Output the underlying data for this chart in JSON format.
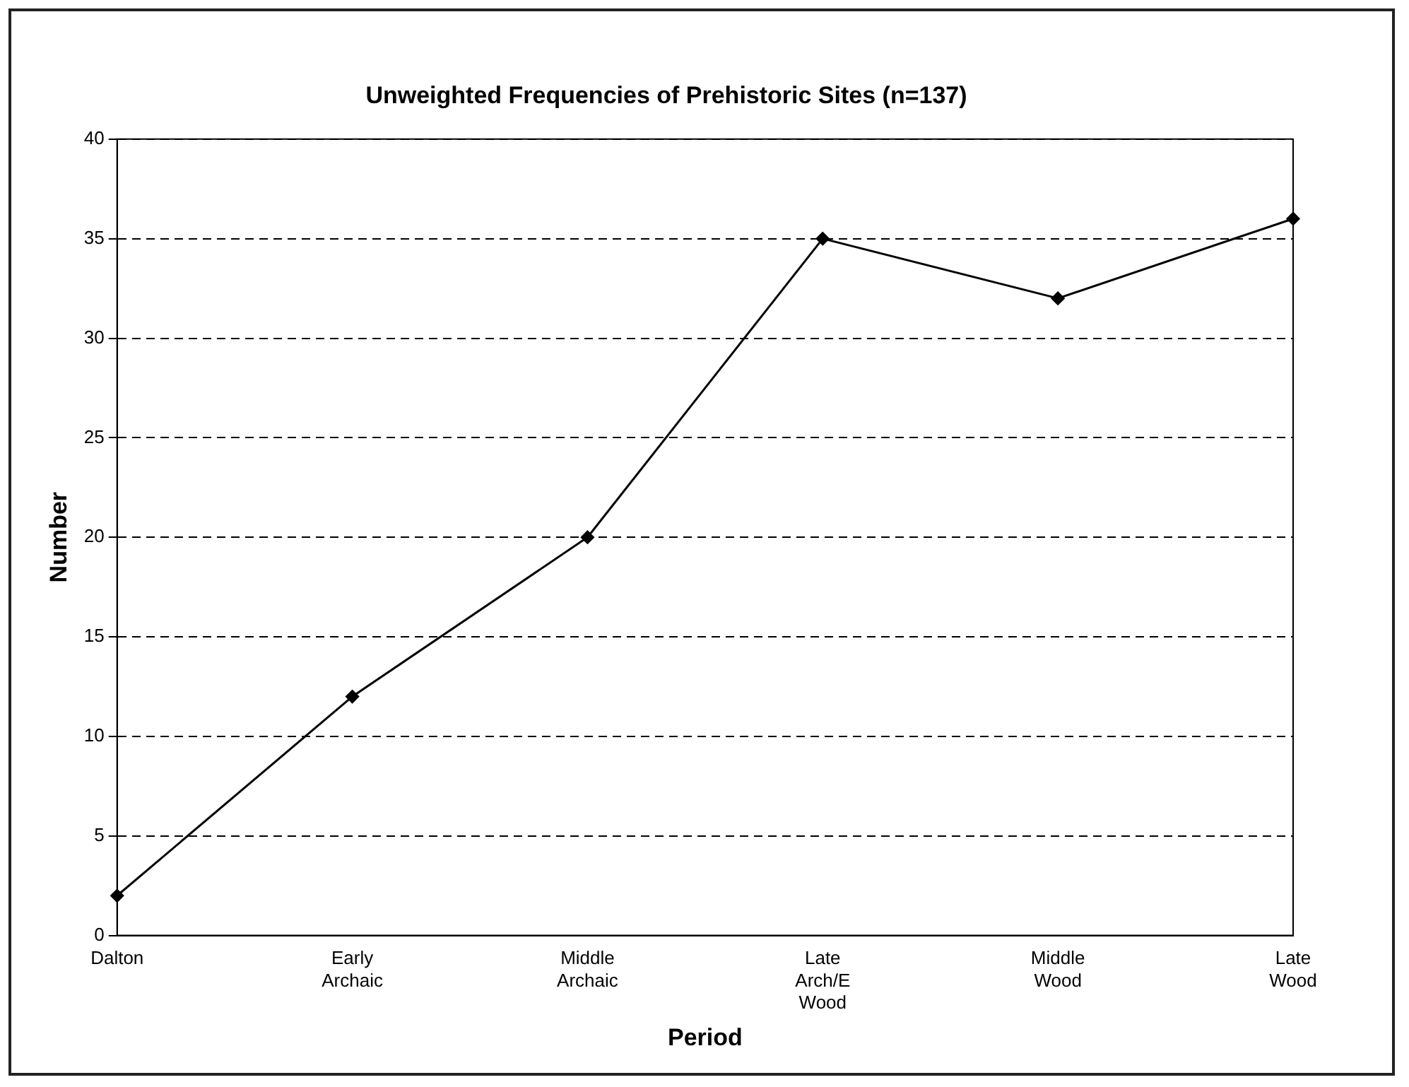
{
  "chart_data": {
    "type": "line",
    "title": "Unweighted Frequencies of Prehistoric Sites (n=137)",
    "xlabel": "Period",
    "ylabel": "Number",
    "categories": [
      "Dalton",
      "Early Archaic",
      "Middle Archaic",
      "Late Arch/E Wood",
      "Middle Wood",
      "Late Wood"
    ],
    "series": [
      {
        "color": "#000000",
        "values": [
          2,
          12,
          20,
          35,
          32,
          36
        ]
      }
    ],
    "ylim": [
      0,
      40
    ],
    "yticks": [
      0,
      5,
      10,
      15,
      20,
      25,
      30,
      35,
      40
    ],
    "grid": "y",
    "line_style": "solid",
    "marker": "diamond",
    "legend": false
  }
}
